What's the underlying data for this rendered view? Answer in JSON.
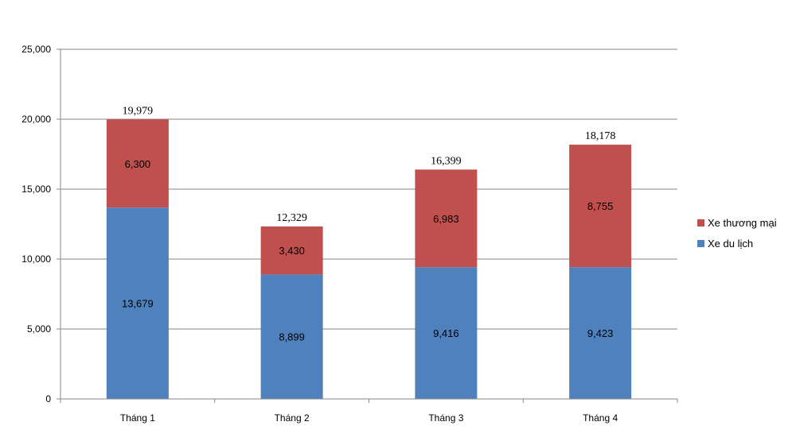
{
  "chart_data": {
    "type": "bar",
    "stacked": true,
    "title": "",
    "xlabel": "",
    "ylabel": "",
    "ylim": [
      0,
      25000
    ],
    "y_ticks": [
      0,
      5000,
      10000,
      15000,
      20000,
      25000
    ],
    "y_tick_labels": [
      "0",
      "5,000",
      "10,000",
      "15,000",
      "20,000",
      "25,000"
    ],
    "grid": true,
    "legend_position": "right",
    "categories": [
      "Tháng 1",
      "Tháng 2",
      "Tháng 3",
      "Tháng 4"
    ],
    "series": [
      {
        "name": "Xe du lịch",
        "color": "#4F81BD",
        "values": [
          13679,
          8899,
          9416,
          9423
        ],
        "labels": [
          "13,679",
          "8,899",
          "9,416",
          "9,423"
        ]
      },
      {
        "name": "Xe thương mại",
        "color": "#C0504D",
        "values": [
          6300,
          3430,
          6983,
          8755
        ],
        "labels": [
          "6,300",
          "3,430",
          "6,983",
          "8,755"
        ]
      }
    ],
    "totals": [
      19979,
      12329,
      16399,
      18178
    ],
    "total_labels": [
      "19,979",
      "12,329",
      "16,399",
      "18,178"
    ],
    "legend_order": [
      1,
      0
    ]
  }
}
